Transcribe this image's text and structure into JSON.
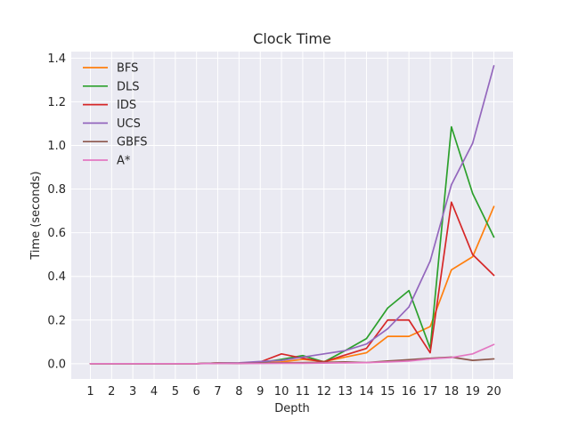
{
  "chart_data": {
    "type": "line",
    "title": "Clock Time",
    "xlabel": "Depth",
    "ylabel": "Time (seconds)",
    "x": [
      1,
      2,
      3,
      4,
      5,
      6,
      7,
      8,
      9,
      10,
      11,
      12,
      13,
      14,
      15,
      16,
      17,
      18,
      19,
      20
    ],
    "xlim": [
      0.1,
      20.9
    ],
    "ylim": [
      -0.07,
      1.43
    ],
    "yticks": [
      0.0,
      0.2,
      0.4,
      0.6,
      0.8,
      1.0,
      1.2,
      1.4
    ],
    "ytick_labels": [
      "0.0",
      "0.2",
      "0.4",
      "0.6",
      "0.8",
      "1.0",
      "1.2",
      "1.4"
    ],
    "grid": true,
    "legend_position": "top-left",
    "background": "#eaeaf2",
    "series": [
      {
        "name": "BFS",
        "color": "#ff7f0e",
        "values": [
          0,
          0,
          0,
          0,
          0,
          0,
          0.003,
          0.002,
          0.004,
          0.008,
          0.02,
          0.01,
          0.03,
          0.05,
          0.125,
          0.125,
          0.17,
          0.43,
          0.49,
          0.72
        ]
      },
      {
        "name": "DLS",
        "color": "#2ca02c",
        "values": [
          0,
          0,
          0,
          0,
          0,
          0,
          0.003,
          0.002,
          0.005,
          0.02,
          0.037,
          0.008,
          0.06,
          0.115,
          0.255,
          0.335,
          0.07,
          1.085,
          0.78,
          0.58
        ]
      },
      {
        "name": "IDS",
        "color": "#d62728",
        "values": [
          0,
          0,
          0,
          0,
          0,
          0,
          0.003,
          0.002,
          0.008,
          0.045,
          0.025,
          0.008,
          0.04,
          0.07,
          0.2,
          0.2,
          0.05,
          0.74,
          0.5,
          0.405
        ]
      },
      {
        "name": "UCS",
        "color": "#9467bd",
        "values": [
          0,
          0,
          0,
          0,
          0,
          0,
          0.003,
          0.004,
          0.01,
          0.015,
          0.03,
          0.045,
          0.06,
          0.09,
          0.16,
          0.26,
          0.47,
          0.82,
          1.01,
          1.365
        ]
      },
      {
        "name": "GBFS",
        "color": "#8c564b",
        "values": [
          0,
          0,
          0,
          0,
          0,
          0,
          0.002,
          0.002,
          0.003,
          0.004,
          0.005,
          0.006,
          0.008,
          0.005,
          0.012,
          0.018,
          0.025,
          0.03,
          0.015,
          0.022
        ]
      },
      {
        "name": "A*",
        "color": "#e377c2",
        "values": [
          0,
          0,
          0,
          0,
          0,
          0,
          0.001,
          0.001,
          0.001,
          0.002,
          0.002,
          0.003,
          0.004,
          0.005,
          0.008,
          0.012,
          0.022,
          0.028,
          0.045,
          0.088
        ]
      }
    ]
  }
}
